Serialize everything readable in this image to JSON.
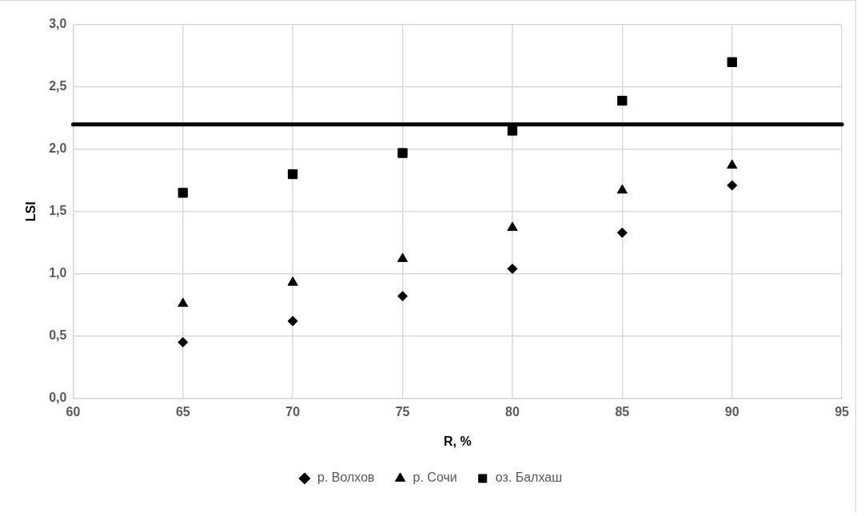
{
  "chart_data": {
    "type": "scatter",
    "xlabel": "R, %",
    "ylabel": "LSI",
    "x": [
      65,
      70,
      75,
      80,
      85,
      90
    ],
    "series": [
      {
        "name": "р. Волхов",
        "color": "#000000",
        "marker": "diamond",
        "values": [
          0.45,
          0.62,
          0.82,
          1.04,
          1.33,
          1.71
        ]
      },
      {
        "name": "р. Сочи",
        "color": "#000000",
        "marker": "triangle",
        "values": [
          0.76,
          0.93,
          1.12,
          1.37,
          1.67,
          1.87
        ]
      },
      {
        "name": "оз. Балхаш",
        "color": "#000000",
        "marker": "square",
        "values": [
          1.65,
          1.8,
          1.97,
          2.15,
          2.39,
          2.7
        ]
      }
    ],
    "xlim": [
      60,
      95
    ],
    "xticks": [
      60,
      65,
      70,
      75,
      80,
      85,
      90,
      95
    ],
    "ylim": [
      0,
      3
    ],
    "yticks": [
      {
        "value": 0,
        "label": "0,0"
      },
      {
        "value": 0.5,
        "label": "0,5"
      },
      {
        "value": 1,
        "label": "1,0"
      },
      {
        "value": 1.5,
        "label": "1,5"
      },
      {
        "value": 2,
        "label": "2,0"
      },
      {
        "value": 2.5,
        "label": "2,5"
      },
      {
        "value": 3,
        "label": "3,0"
      }
    ],
    "ref_lines": [
      {
        "axis": "y",
        "value": 2.2,
        "color": "#000000"
      }
    ],
    "grid": true,
    "legend": "bottom"
  }
}
